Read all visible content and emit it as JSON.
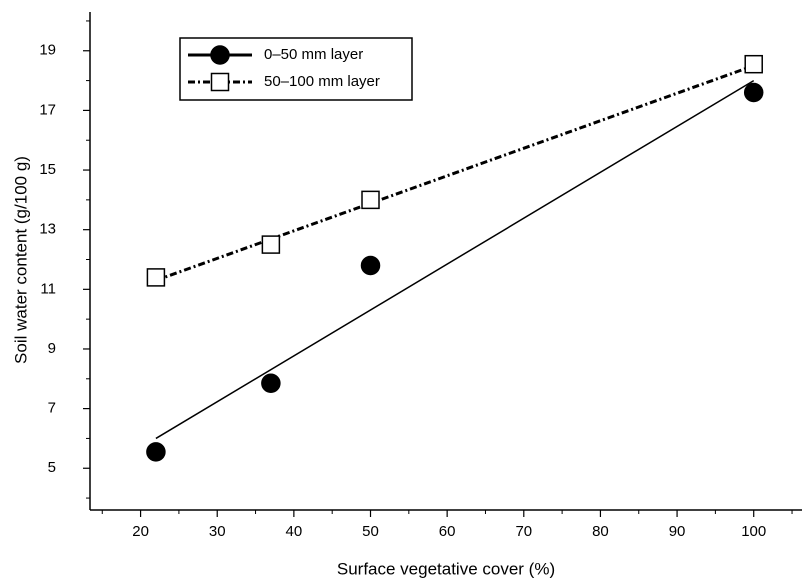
{
  "chart_data": {
    "type": "scatter",
    "xlabel": "Surface vegetative cover (%)",
    "ylabel": "Soil water content (g/100 g)",
    "xlim": [
      13.4,
      106.3
    ],
    "ylim": [
      3.6,
      20.3
    ],
    "xticks": [
      20,
      30,
      40,
      50,
      60,
      70,
      80,
      90,
      100
    ],
    "xminor": [
      15,
      25,
      35,
      45,
      55,
      65,
      75,
      85,
      95,
      105
    ],
    "yticks": [
      5,
      7,
      9,
      11,
      13,
      15,
      17,
      19
    ],
    "yminor": [
      4,
      6,
      8,
      10,
      12,
      14,
      16,
      18,
      20
    ],
    "legend": "upper left",
    "series": [
      {
        "name": "0–50 mm layer",
        "color": "#000000",
        "marker": "circle",
        "marker_fill": "#000000",
        "line_style": "solid",
        "x": [
          22,
          37,
          50,
          100
        ],
        "values": [
          5.55,
          7.85,
          11.8,
          17.6
        ],
        "fit": {
          "x": [
            22,
            100
          ],
          "y": [
            6.0,
            18.0
          ]
        }
      },
      {
        "name": "50–100 mm layer",
        "color": "#000000",
        "marker": "square",
        "marker_fill": "#ffffff",
        "line_style": "dashdot",
        "x": [
          22,
          37,
          50,
          100
        ],
        "values": [
          11.4,
          12.5,
          14.0,
          18.55
        ],
        "fit": {
          "x": [
            22,
            100
          ],
          "y": [
            11.3,
            18.5
          ]
        }
      }
    ]
  }
}
